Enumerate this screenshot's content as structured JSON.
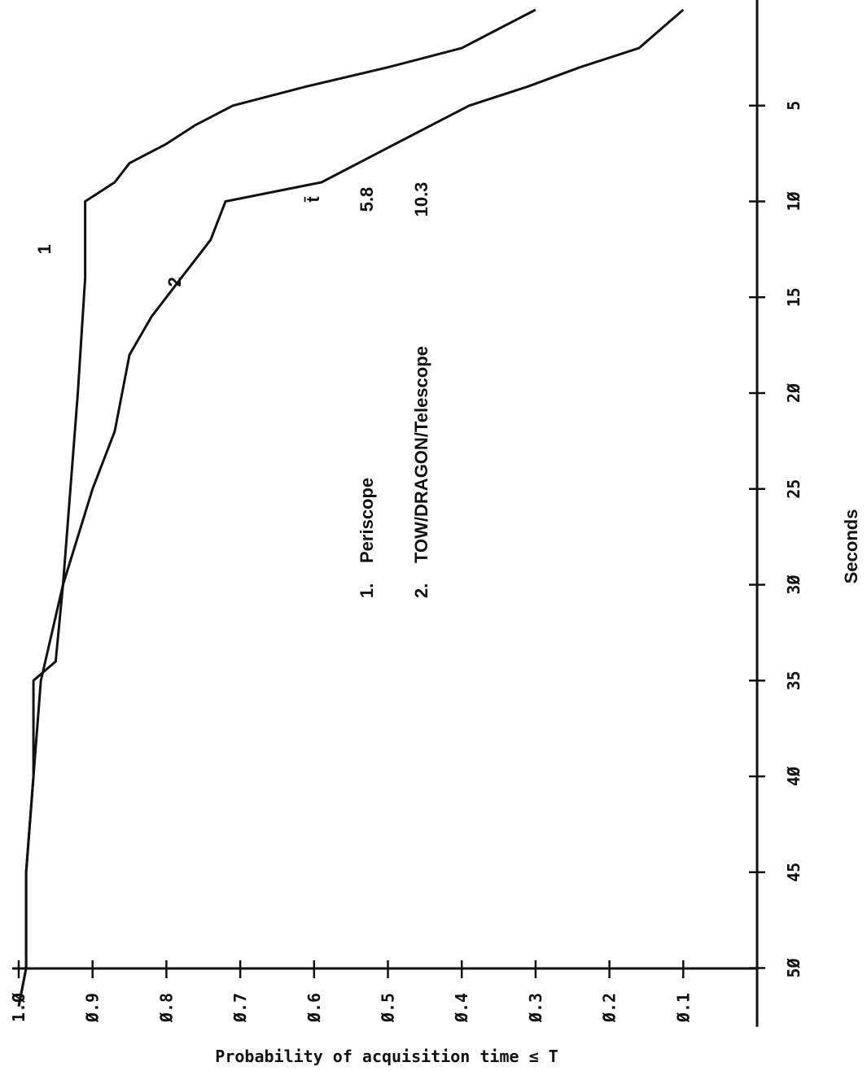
{
  "chart_data": {
    "type": "line",
    "xlabel": "Seconds",
    "ylabel": "Probability of acquisition time ≤ T",
    "xlim": [
      0,
      52
    ],
    "ylim": [
      0,
      1.0
    ],
    "x_ticks": [
      5,
      10,
      15,
      20,
      25,
      30,
      35,
      40,
      45,
      50
    ],
    "x_tick_labels": [
      "5",
      "1Ø",
      "15",
      "2Ø",
      "25",
      "3Ø",
      "35",
      "4Ø",
      "45",
      "5Ø"
    ],
    "y_ticks": [
      0.1,
      0.2,
      0.3,
      0.4,
      0.5,
      0.6,
      0.7,
      0.8,
      0.9,
      1.0
    ],
    "y_tick_labels": [
      "Ø.1",
      "Ø.2",
      "Ø.3",
      "Ø.4",
      "Ø.5",
      "Ø.6",
      "Ø.7",
      "Ø.8",
      "Ø.9",
      "1.Ø"
    ],
    "series": [
      {
        "label": "1",
        "points": [
          [
            0,
            0.3
          ],
          [
            1,
            0.35
          ],
          [
            2,
            0.4
          ],
          [
            3,
            0.5
          ],
          [
            4,
            0.61
          ],
          [
            5,
            0.71
          ],
          [
            6,
            0.76
          ],
          [
            7,
            0.8
          ],
          [
            8,
            0.85
          ],
          [
            9,
            0.87
          ],
          [
            10,
            0.91
          ],
          [
            14,
            0.91
          ],
          [
            20,
            0.92
          ],
          [
            25,
            0.93
          ],
          [
            30,
            0.94
          ],
          [
            34,
            0.95
          ],
          [
            35,
            0.98
          ],
          [
            40,
            0.98
          ],
          [
            45,
            0.99
          ],
          [
            50,
            0.99
          ],
          [
            52,
            1.0
          ]
        ]
      },
      {
        "label": "2",
        "points": [
          [
            0,
            0.1
          ],
          [
            1,
            0.13
          ],
          [
            2,
            0.16
          ],
          [
            3,
            0.24
          ],
          [
            4,
            0.31
          ],
          [
            5,
            0.39
          ],
          [
            6,
            0.44
          ],
          [
            7,
            0.49
          ],
          [
            8,
            0.54
          ],
          [
            9,
            0.59
          ],
          [
            10,
            0.72
          ],
          [
            12,
            0.74
          ],
          [
            14,
            0.78
          ],
          [
            16,
            0.82
          ],
          [
            18,
            0.85
          ],
          [
            20,
            0.86
          ],
          [
            22,
            0.87
          ],
          [
            25,
            0.9
          ],
          [
            30,
            0.94
          ],
          [
            35,
            0.97
          ],
          [
            40,
            0.98
          ],
          [
            45,
            0.99
          ],
          [
            50,
            0.99
          ],
          [
            52,
            1.0
          ]
        ]
      }
    ],
    "legend": {
      "entries": [
        {
          "number": "1.",
          "name": "Periscope",
          "value": "5.8"
        },
        {
          "number": "2.",
          "name": "TOW/DRAGON/Telescope",
          "value": "10.3"
        }
      ],
      "value_header": "t̄"
    }
  }
}
